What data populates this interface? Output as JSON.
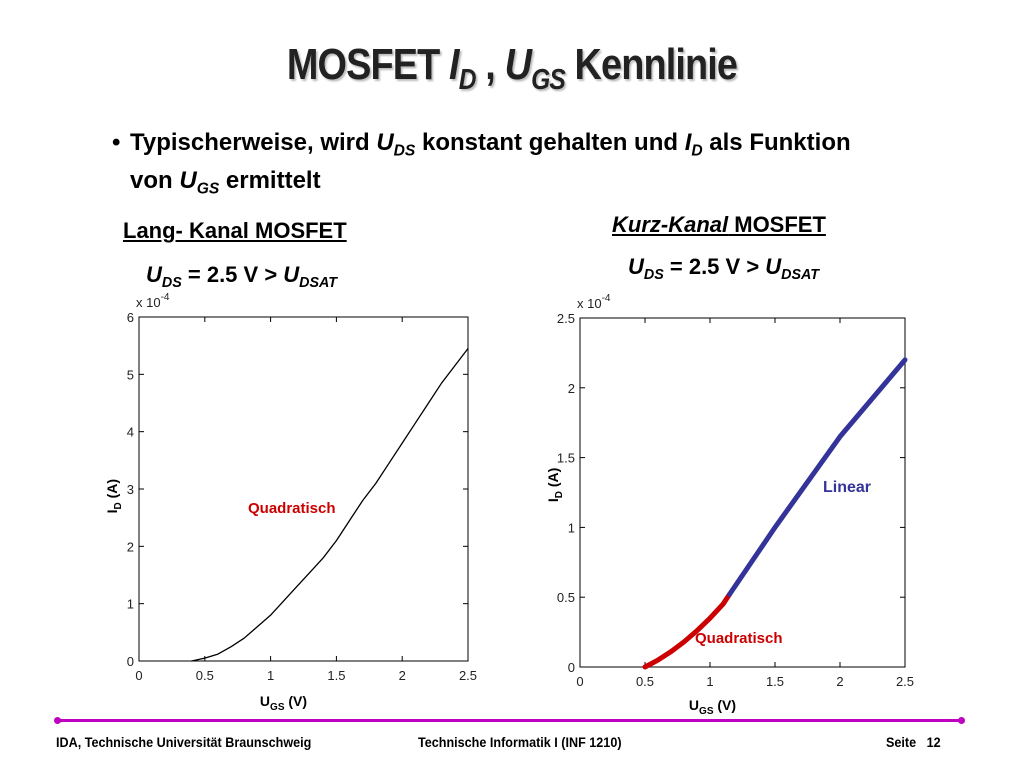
{
  "slide": {
    "title": {
      "main": "MOSFET ",
      "i": "I",
      "i_sub": "D",
      "sep": " , ",
      "u": "U",
      "u_sub": "GS",
      "rest": " Kennlinie"
    },
    "bullet": {
      "part1": "Typischerweise, wird ",
      "uds": "U",
      "uds_sub": "DS",
      "part2": " konstant gehalten und ",
      "id": "I",
      "id_sub": "D",
      "part3": " als Funktion",
      "line2a": "von ",
      "ugs": "U",
      "ugs_sub": "GS",
      "line2b": " ermittelt"
    },
    "left_heading": "Lang- Kanal MOSFET",
    "right_heading_italic": "Kurz-Kanal",
    "right_heading_rest": " MOSFET",
    "condition": {
      "u": "U",
      "sub1": "DS",
      "mid": " = 2.5 V > ",
      "u2": "U",
      "sub2": "DSAT"
    }
  },
  "chart_data": [
    {
      "type": "line",
      "xlabel": "U",
      "xlabel_sub": "GS",
      "xlabel_unit": " (V)",
      "ylabel": "I",
      "ylabel_sub": "D",
      "ylabel_unit": " (A)",
      "exponent_label": "x 10",
      "exponent": "-4",
      "xlim": [
        0,
        2.5
      ],
      "ylim": [
        0,
        6
      ],
      "xticks": [
        "0",
        "0.5",
        "1",
        "1.5",
        "2",
        "2.5"
      ],
      "yticks": [
        "0",
        "1",
        "2",
        "3",
        "4",
        "5",
        "6"
      ],
      "annotation": {
        "text": "Quadratisch",
        "color": "#cc0000"
      },
      "series": [
        {
          "color": "#000000",
          "x": [
            0.4,
            0.5,
            0.6,
            0.7,
            0.8,
            0.9,
            1.0,
            1.1,
            1.2,
            1.3,
            1.4,
            1.5,
            1.6,
            1.7,
            1.8,
            1.9,
            2.0,
            2.1,
            2.2,
            2.3,
            2.4,
            2.5
          ],
          "y": [
            0.0,
            0.05,
            0.12,
            0.25,
            0.4,
            0.6,
            0.8,
            1.05,
            1.3,
            1.55,
            1.8,
            2.1,
            2.45,
            2.8,
            3.1,
            3.45,
            3.8,
            4.15,
            4.5,
            4.85,
            5.15,
            5.45
          ]
        }
      ]
    },
    {
      "type": "line",
      "xlabel": "U",
      "xlabel_sub": "GS",
      "xlabel_unit": " (V)",
      "ylabel": "I",
      "ylabel_sub": "D",
      "ylabel_unit": " (A)",
      "exponent_label": "x 10",
      "exponent": "-4",
      "xlim": [
        0,
        2.5
      ],
      "ylim": [
        0,
        2.5
      ],
      "xticks": [
        "0",
        "0.5",
        "1",
        "1.5",
        "2",
        "2.5"
      ],
      "yticks": [
        "0",
        "0.5",
        "1",
        "1.5",
        "2",
        "2.5"
      ],
      "annotations": [
        {
          "text": "Linear",
          "color": "#333399"
        },
        {
          "text": "Quadratisch",
          "color": "#cc0000"
        }
      ],
      "series": [
        {
          "color": "#cc0000",
          "x": [
            0.5,
            0.6,
            0.7,
            0.8,
            0.9,
            1.0,
            1.1,
            1.15
          ],
          "y": [
            0.0,
            0.05,
            0.11,
            0.18,
            0.26,
            0.35,
            0.45,
            0.52
          ]
        },
        {
          "color": "#333399",
          "x": [
            1.15,
            1.5,
            2.0,
            2.5
          ],
          "y": [
            0.52,
            1.0,
            1.65,
            2.2
          ]
        }
      ]
    }
  ],
  "footer": {
    "left": "IDA, Technische Universität Braunschweig",
    "center": "Technische Informatik I (INF 1210)",
    "page_label": "Seite",
    "page_number": "12"
  }
}
